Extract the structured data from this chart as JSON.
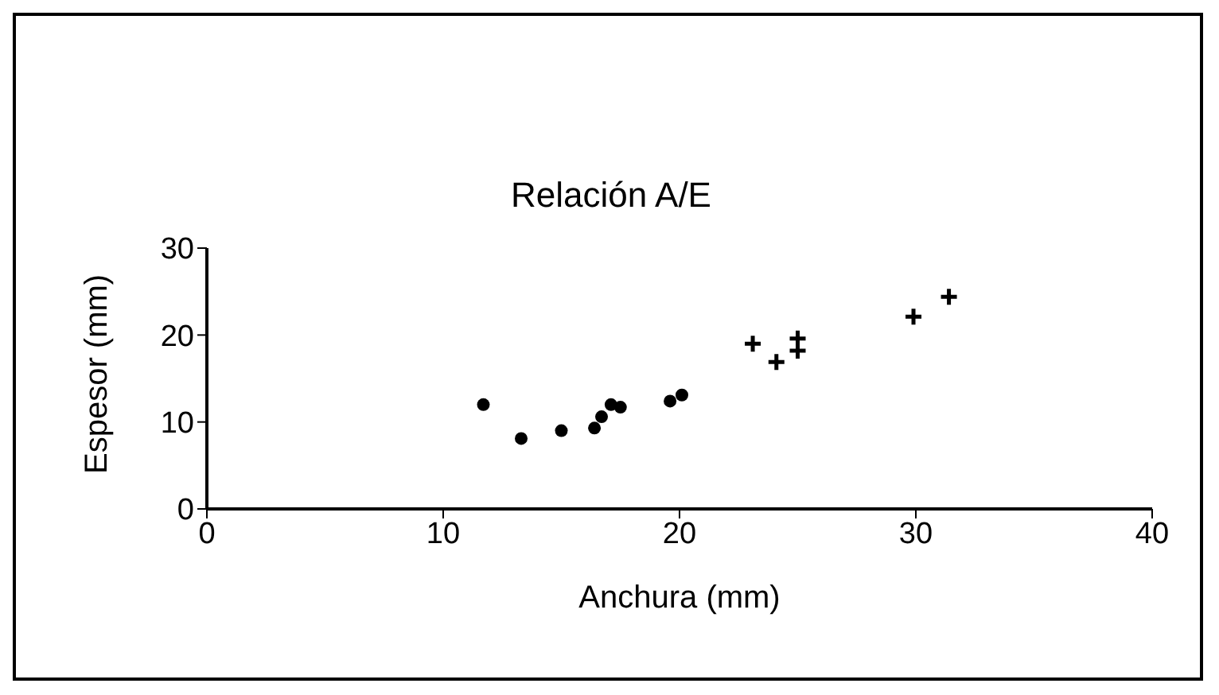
{
  "chart_data": {
    "type": "scatter",
    "title": "Relación  A/E",
    "xlabel": "Anchura (mm)",
    "ylabel": "Espesor (mm)",
    "xlim": [
      0,
      40
    ],
    "xticks": [
      0,
      10,
      20,
      30,
      40
    ],
    "ylim": [
      0,
      30
    ],
    "yticks": [
      0,
      10,
      20,
      30
    ],
    "grid": false,
    "legend": false,
    "series": [
      {
        "color": "#000000",
        "marker": "circle",
        "x": [
          11.7,
          13.3,
          15.0,
          16.4,
          16.7,
          17.1,
          17.5,
          19.6,
          20.1
        ],
        "values": [
          12.0,
          8.1,
          9.0,
          9.3,
          10.6,
          12.0,
          11.7,
          12.4,
          13.1
        ]
      },
      {
        "color": "#000000",
        "marker": "cross",
        "x": [
          23.1,
          24.1,
          25.0,
          25.0,
          29.9,
          31.4
        ],
        "values": [
          19.0,
          16.9,
          19.6,
          18.2,
          22.1,
          24.4
        ]
      }
    ]
  }
}
